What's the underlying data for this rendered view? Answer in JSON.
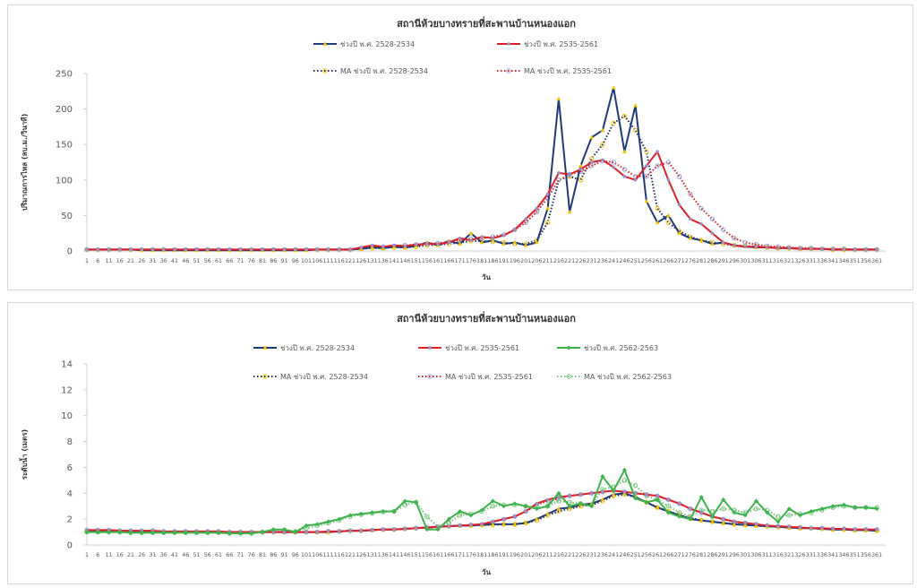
{
  "chart_data": [
    {
      "type": "line",
      "title": "สถานีห้วยบางทรายที่สะพานบ้านหนองแอก",
      "xlabel": "วัน",
      "ylabel": "ปริมาณการไหล (ลบ.ม./วินาที)",
      "ylim": [
        0,
        250
      ],
      "yticks": [
        0,
        50,
        100,
        150,
        200,
        250
      ],
      "x": [
        1,
        6,
        11,
        16,
        21,
        26,
        31,
        36,
        41,
        46,
        51,
        56,
        61,
        66,
        71,
        76,
        81,
        86,
        91,
        96,
        101,
        106,
        111,
        116,
        121,
        126,
        131,
        136,
        141,
        146,
        151,
        156,
        161,
        166,
        171,
        176,
        181,
        186,
        191,
        196,
        201,
        206,
        211,
        216,
        221,
        226,
        231,
        236,
        241,
        246,
        251,
        256,
        261,
        266,
        271,
        276,
        281,
        286,
        291,
        296,
        301,
        306,
        311,
        316,
        321,
        326,
        331,
        336,
        341,
        346,
        351,
        356,
        361
      ],
      "xticks": "every 5 days from 1 to 361",
      "grid": false,
      "legend": "top",
      "series": [
        {
          "name": "ช่วงปี พ.ศ. 2528-2534",
          "style": "solid",
          "color": "#1f3a7a",
          "marker": "triangle",
          "marker_color": "#f2c200",
          "values": [
            2,
            2,
            2,
            2,
            2,
            1,
            1,
            1,
            1,
            1,
            1,
            1,
            1,
            1,
            1,
            1,
            1,
            1,
            1,
            1,
            1,
            2,
            2,
            2,
            2,
            3,
            5,
            4,
            6,
            5,
            7,
            12,
            8,
            14,
            10,
            25,
            12,
            15,
            10,
            12,
            8,
            12,
            60,
            214,
            55,
            120,
            160,
            170,
            230,
            140,
            205,
            70,
            40,
            50,
            25,
            18,
            15,
            10,
            12,
            8,
            6,
            5,
            5,
            4,
            4,
            3,
            3,
            3,
            2,
            2,
            2,
            2,
            2
          ]
        },
        {
          "name": "ช่วงปี พ.ศ. 2535-2561",
          "style": "solid",
          "color": "#e0202a",
          "marker": "circle",
          "marker_color": "#9a8fc0",
          "values": [
            2,
            2,
            2,
            2,
            2,
            2,
            2,
            2,
            2,
            2,
            2,
            2,
            2,
            2,
            2,
            2,
            2,
            2,
            2,
            2,
            2,
            2,
            2,
            2,
            2,
            5,
            8,
            6,
            8,
            7,
            9,
            10,
            10,
            12,
            18,
            15,
            20,
            18,
            22,
            30,
            45,
            60,
            80,
            110,
            108,
            115,
            125,
            128,
            118,
            105,
            100,
            120,
            140,
            100,
            65,
            45,
            38,
            25,
            12,
            8,
            6,
            6,
            5,
            4,
            4,
            3,
            3,
            3,
            2,
            2,
            2,
            2,
            2
          ]
        },
        {
          "name": "MA ช่วงปี พ.ศ. 2528-2534",
          "style": "dotted",
          "color": "#1f2a5a",
          "marker": "open-circle",
          "marker_color": "#f2c200",
          "values": [
            2,
            2,
            2,
            2,
            2,
            2,
            2,
            2,
            2,
            2,
            2,
            2,
            2,
            2,
            2,
            2,
            2,
            2,
            2,
            2,
            2,
            2,
            2,
            2,
            2,
            3,
            4,
            4,
            5,
            5,
            6,
            8,
            9,
            10,
            12,
            14,
            14,
            13,
            12,
            10,
            10,
            15,
            40,
            100,
            105,
            100,
            130,
            150,
            180,
            190,
            170,
            140,
            60,
            40,
            28,
            20,
            15,
            12,
            10,
            8,
            7,
            6,
            5,
            4,
            4,
            3,
            3,
            3,
            2,
            2,
            2,
            2,
            2
          ]
        },
        {
          "name": "MA ช่วงปี พ.ศ. 2535-2561",
          "style": "dotted",
          "color": "#e0202a",
          "marker": "open-circle",
          "marker_color": "#8fa8d8",
          "values": [
            2,
            2,
            2,
            2,
            2,
            2,
            2,
            2,
            2,
            2,
            2,
            2,
            2,
            2,
            2,
            2,
            2,
            2,
            2,
            2,
            2,
            2,
            2,
            2,
            2,
            4,
            6,
            6,
            7,
            8,
            9,
            10,
            11,
            13,
            15,
            17,
            18,
            20,
            23,
            30,
            40,
            55,
            75,
            100,
            108,
            112,
            120,
            127,
            125,
            115,
            105,
            105,
            120,
            125,
            105,
            80,
            60,
            45,
            30,
            18,
            12,
            9,
            7,
            6,
            5,
            4,
            4,
            3,
            3,
            3,
            2,
            2,
            2
          ]
        }
      ]
    },
    {
      "type": "line",
      "title": "สถานีห้วยบางทรายที่สะพานบ้านหนองแอก",
      "xlabel": "วัน",
      "ylabel": "ระดับน้ำ (เมตร)",
      "ylim": [
        0,
        14
      ],
      "yticks": [
        0,
        2,
        4,
        6,
        8,
        10,
        12,
        14
      ],
      "x": [
        1,
        6,
        11,
        16,
        21,
        26,
        31,
        36,
        41,
        46,
        51,
        56,
        61,
        66,
        71,
        76,
        81,
        86,
        91,
        96,
        101,
        106,
        111,
        116,
        121,
        126,
        131,
        136,
        141,
        146,
        151,
        156,
        161,
        166,
        171,
        176,
        181,
        186,
        191,
        196,
        201,
        206,
        211,
        216,
        221,
        226,
        231,
        236,
        241,
        246,
        251,
        256,
        261,
        266,
        271,
        276,
        281,
        286,
        291,
        296,
        301,
        306,
        311,
        316,
        321,
        326,
        331,
        336,
        341,
        346,
        351,
        356,
        361
      ],
      "xticks": "every 5 days from 1 to 361",
      "grid": false,
      "legend": "top",
      "series": [
        {
          "name": "ช่วงปี พ.ศ. 2528-2534",
          "style": "solid",
          "color": "#1f3a7a",
          "marker": "triangle",
          "marker_color": "#f2c200",
          "values": [
            1.1,
            1.1,
            1.1,
            1.1,
            1.05,
            1.05,
            1.05,
            1.0,
            1.0,
            1.0,
            1.0,
            1.0,
            1.0,
            1.0,
            1.0,
            1.0,
            1.0,
            1.0,
            1.0,
            1.0,
            1.0,
            1.0,
            1.0,
            1.05,
            1.1,
            1.1,
            1.15,
            1.2,
            1.2,
            1.25,
            1.3,
            1.35,
            1.4,
            1.45,
            1.5,
            1.5,
            1.55,
            1.6,
            1.6,
            1.6,
            1.7,
            2.0,
            2.4,
            2.8,
            2.9,
            3.1,
            3.2,
            3.5,
            3.9,
            4.0,
            3.7,
            3.3,
            2.9,
            2.6,
            2.3,
            2.0,
            1.9,
            1.8,
            1.7,
            1.6,
            1.55,
            1.5,
            1.45,
            1.4,
            1.35,
            1.3,
            1.3,
            1.25,
            1.2,
            1.2,
            1.15,
            1.15,
            1.1
          ]
        },
        {
          "name": "ช่วงปี พ.ศ. 2535-2561",
          "style": "solid",
          "color": "#e0202a",
          "marker": "circle",
          "marker_color": "#9a8fc0",
          "values": [
            1.15,
            1.15,
            1.15,
            1.1,
            1.1,
            1.1,
            1.1,
            1.05,
            1.05,
            1.05,
            1.05,
            1.05,
            1.05,
            1.0,
            1.0,
            1.0,
            1.0,
            1.0,
            1.0,
            1.0,
            1.0,
            1.0,
            1.05,
            1.05,
            1.1,
            1.1,
            1.15,
            1.2,
            1.2,
            1.25,
            1.3,
            1.35,
            1.4,
            1.45,
            1.5,
            1.55,
            1.6,
            1.8,
            2.0,
            2.2,
            2.6,
            3.2,
            3.5,
            3.7,
            3.8,
            3.9,
            4.0,
            4.1,
            4.2,
            4.1,
            4.0,
            3.9,
            3.8,
            3.5,
            3.2,
            2.8,
            2.5,
            2.2,
            2.0,
            1.8,
            1.7,
            1.6,
            1.5,
            1.45,
            1.4,
            1.35,
            1.3,
            1.3,
            1.25,
            1.25,
            1.2,
            1.2,
            1.2
          ]
        },
        {
          "name": "ช่วงปี พ.ศ. 2562-2563",
          "style": "solid",
          "color": "#3cb44b",
          "marker": "diamond",
          "marker_color": "#3cb44b",
          "values": [
            1.0,
            1.0,
            1.0,
            1.0,
            0.95,
            0.95,
            0.95,
            0.95,
            0.95,
            0.95,
            0.95,
            0.95,
            0.95,
            0.9,
            0.9,
            0.9,
            1.0,
            1.2,
            1.2,
            1.0,
            1.5,
            1.6,
            1.8,
            2.0,
            2.3,
            2.4,
            2.5,
            2.6,
            2.6,
            3.4,
            3.3,
            1.2,
            1.2,
            2.0,
            2.6,
            2.3,
            2.7,
            3.4,
            3.0,
            3.2,
            3.0,
            2.8,
            3.0,
            4.0,
            3.0,
            3.2,
            3.0,
            5.3,
            4.2,
            5.8,
            3.6,
            3.3,
            3.5,
            2.5,
            2.2,
            2.0,
            3.7,
            2.2,
            3.5,
            2.5,
            2.3,
            3.4,
            2.5,
            1.8,
            2.8,
            2.3,
            2.6,
            2.8,
            3.0,
            3.1,
            2.9,
            2.9,
            2.8
          ]
        },
        {
          "name": "MA ช่วงปี พ.ศ. 2528-2534",
          "style": "dotted",
          "color": "#1f2a5a",
          "marker": "open-circle",
          "marker_color": "#f2c200",
          "values": [
            1.1,
            1.1,
            1.1,
            1.1,
            1.05,
            1.05,
            1.05,
            1.0,
            1.0,
            1.0,
            1.0,
            1.0,
            1.0,
            1.0,
            1.0,
            1.0,
            1.0,
            1.0,
            1.0,
            1.0,
            1.0,
            1.0,
            1.0,
            1.05,
            1.1,
            1.1,
            1.15,
            1.2,
            1.2,
            1.25,
            1.3,
            1.35,
            1.4,
            1.45,
            1.5,
            1.5,
            1.55,
            1.55,
            1.6,
            1.6,
            1.7,
            1.9,
            2.3,
            2.6,
            2.8,
            3.0,
            3.1,
            3.4,
            3.8,
            3.9,
            3.7,
            3.3,
            2.9,
            2.6,
            2.3,
            2.1,
            1.9,
            1.8,
            1.7,
            1.6,
            1.55,
            1.5,
            1.45,
            1.4,
            1.35,
            1.3,
            1.3,
            1.25,
            1.2,
            1.2,
            1.15,
            1.15,
            1.1
          ]
        },
        {
          "name": "MA ช่วงปี พ.ศ. 2535-2561",
          "style": "dotted",
          "color": "#e0202a",
          "marker": "open-circle",
          "marker_color": "#8fa8d8",
          "values": [
            1.15,
            1.15,
            1.15,
            1.1,
            1.1,
            1.1,
            1.1,
            1.05,
            1.05,
            1.05,
            1.05,
            1.05,
            1.05,
            1.0,
            1.0,
            1.0,
            1.0,
            1.0,
            1.0,
            1.0,
            1.0,
            1.0,
            1.05,
            1.05,
            1.1,
            1.1,
            1.15,
            1.2,
            1.2,
            1.25,
            1.3,
            1.35,
            1.4,
            1.45,
            1.5,
            1.55,
            1.6,
            1.8,
            2.0,
            2.2,
            2.6,
            3.1,
            3.4,
            3.6,
            3.8,
            3.9,
            4.0,
            4.1,
            4.2,
            4.1,
            4.0,
            3.9,
            3.8,
            3.5,
            3.2,
            2.8,
            2.5,
            2.2,
            2.0,
            1.8,
            1.7,
            1.6,
            1.5,
            1.45,
            1.4,
            1.35,
            1.3,
            1.3,
            1.25,
            1.25,
            1.2,
            1.2,
            1.2
          ]
        },
        {
          "name": "MA ช่วงปี พ.ศ. 2562-2563",
          "style": "dotted",
          "color": "#7cc47f",
          "marker": "open-circle",
          "marker_color": "#7cc47f",
          "values": [
            1.0,
            1.0,
            1.0,
            1.0,
            0.95,
            0.95,
            0.95,
            0.95,
            0.95,
            0.95,
            0.95,
            0.95,
            0.95,
            0.9,
            0.9,
            0.9,
            1.0,
            1.1,
            1.15,
            1.05,
            1.3,
            1.5,
            1.7,
            1.9,
            2.2,
            2.35,
            2.45,
            2.55,
            2.6,
            3.1,
            3.3,
            2.2,
            1.4,
            1.7,
            2.3,
            2.4,
            2.6,
            3.0,
            3.1,
            3.1,
            3.0,
            2.9,
            3.0,
            3.4,
            3.3,
            3.2,
            3.1,
            4.3,
            4.5,
            5.0,
            4.6,
            3.8,
            3.5,
            3.0,
            2.5,
            2.2,
            2.7,
            2.6,
            2.8,
            2.7,
            2.5,
            2.8,
            2.7,
            2.2,
            2.3,
            2.4,
            2.5,
            2.7,
            2.9,
            3.0,
            2.9,
            2.9,
            2.9
          ]
        }
      ]
    }
  ]
}
